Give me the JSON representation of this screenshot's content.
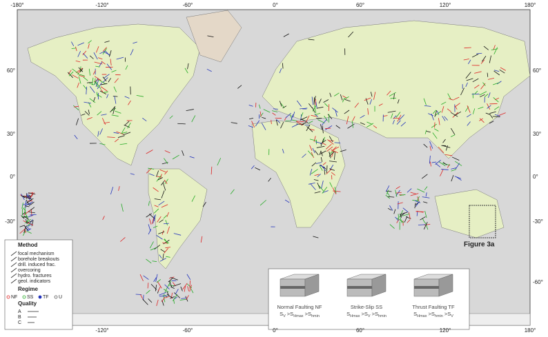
{
  "map": {
    "top_labels": [
      "-180°",
      "-120°",
      "-60°",
      "0°",
      "60°",
      "120°",
      "180°"
    ],
    "bottom_labels": [
      "-120°",
      "-60°",
      "0°",
      "60°",
      "120°",
      "180°"
    ],
    "left_labels": [
      "60°",
      "30°",
      "0°",
      "-30°"
    ],
    "right_labels": [
      "60°",
      "30°",
      "0°",
      "-30°",
      "-60°"
    ],
    "inset_label": "Figure 3a"
  },
  "legend": {
    "method_title": "Method",
    "methods": [
      "focal mechanism",
      "borehole breakouts",
      "drill. induced frac.",
      "overcoring",
      "hydro. fractures",
      "geol. indicators"
    ],
    "regime_title": "Regime",
    "regimes": [
      "NF",
      "SS",
      "TF",
      "U"
    ],
    "quality_title": "Quality",
    "qualities": [
      "A",
      "B",
      "C"
    ]
  },
  "diagrams": [
    {
      "title": "Normal Faulting NF",
      "formula": [
        [
          "S",
          "V"
        ],
        ">",
        [
          "S",
          "Hmax"
        ],
        ">",
        [
          "S",
          "hmin"
        ]
      ]
    },
    {
      "title": "Strike-Slip SS",
      "formula": [
        [
          "S",
          "Hmax"
        ],
        ">",
        [
          "S",
          "V"
        ],
        ">",
        [
          "S",
          "hmin"
        ]
      ]
    },
    {
      "title": "Thrust Faulting TF",
      "formula": [
        [
          "S",
          "Hmax"
        ],
        ">",
        [
          "S",
          "hmin"
        ],
        ">",
        [
          "S",
          "V"
        ]
      ]
    }
  ]
}
